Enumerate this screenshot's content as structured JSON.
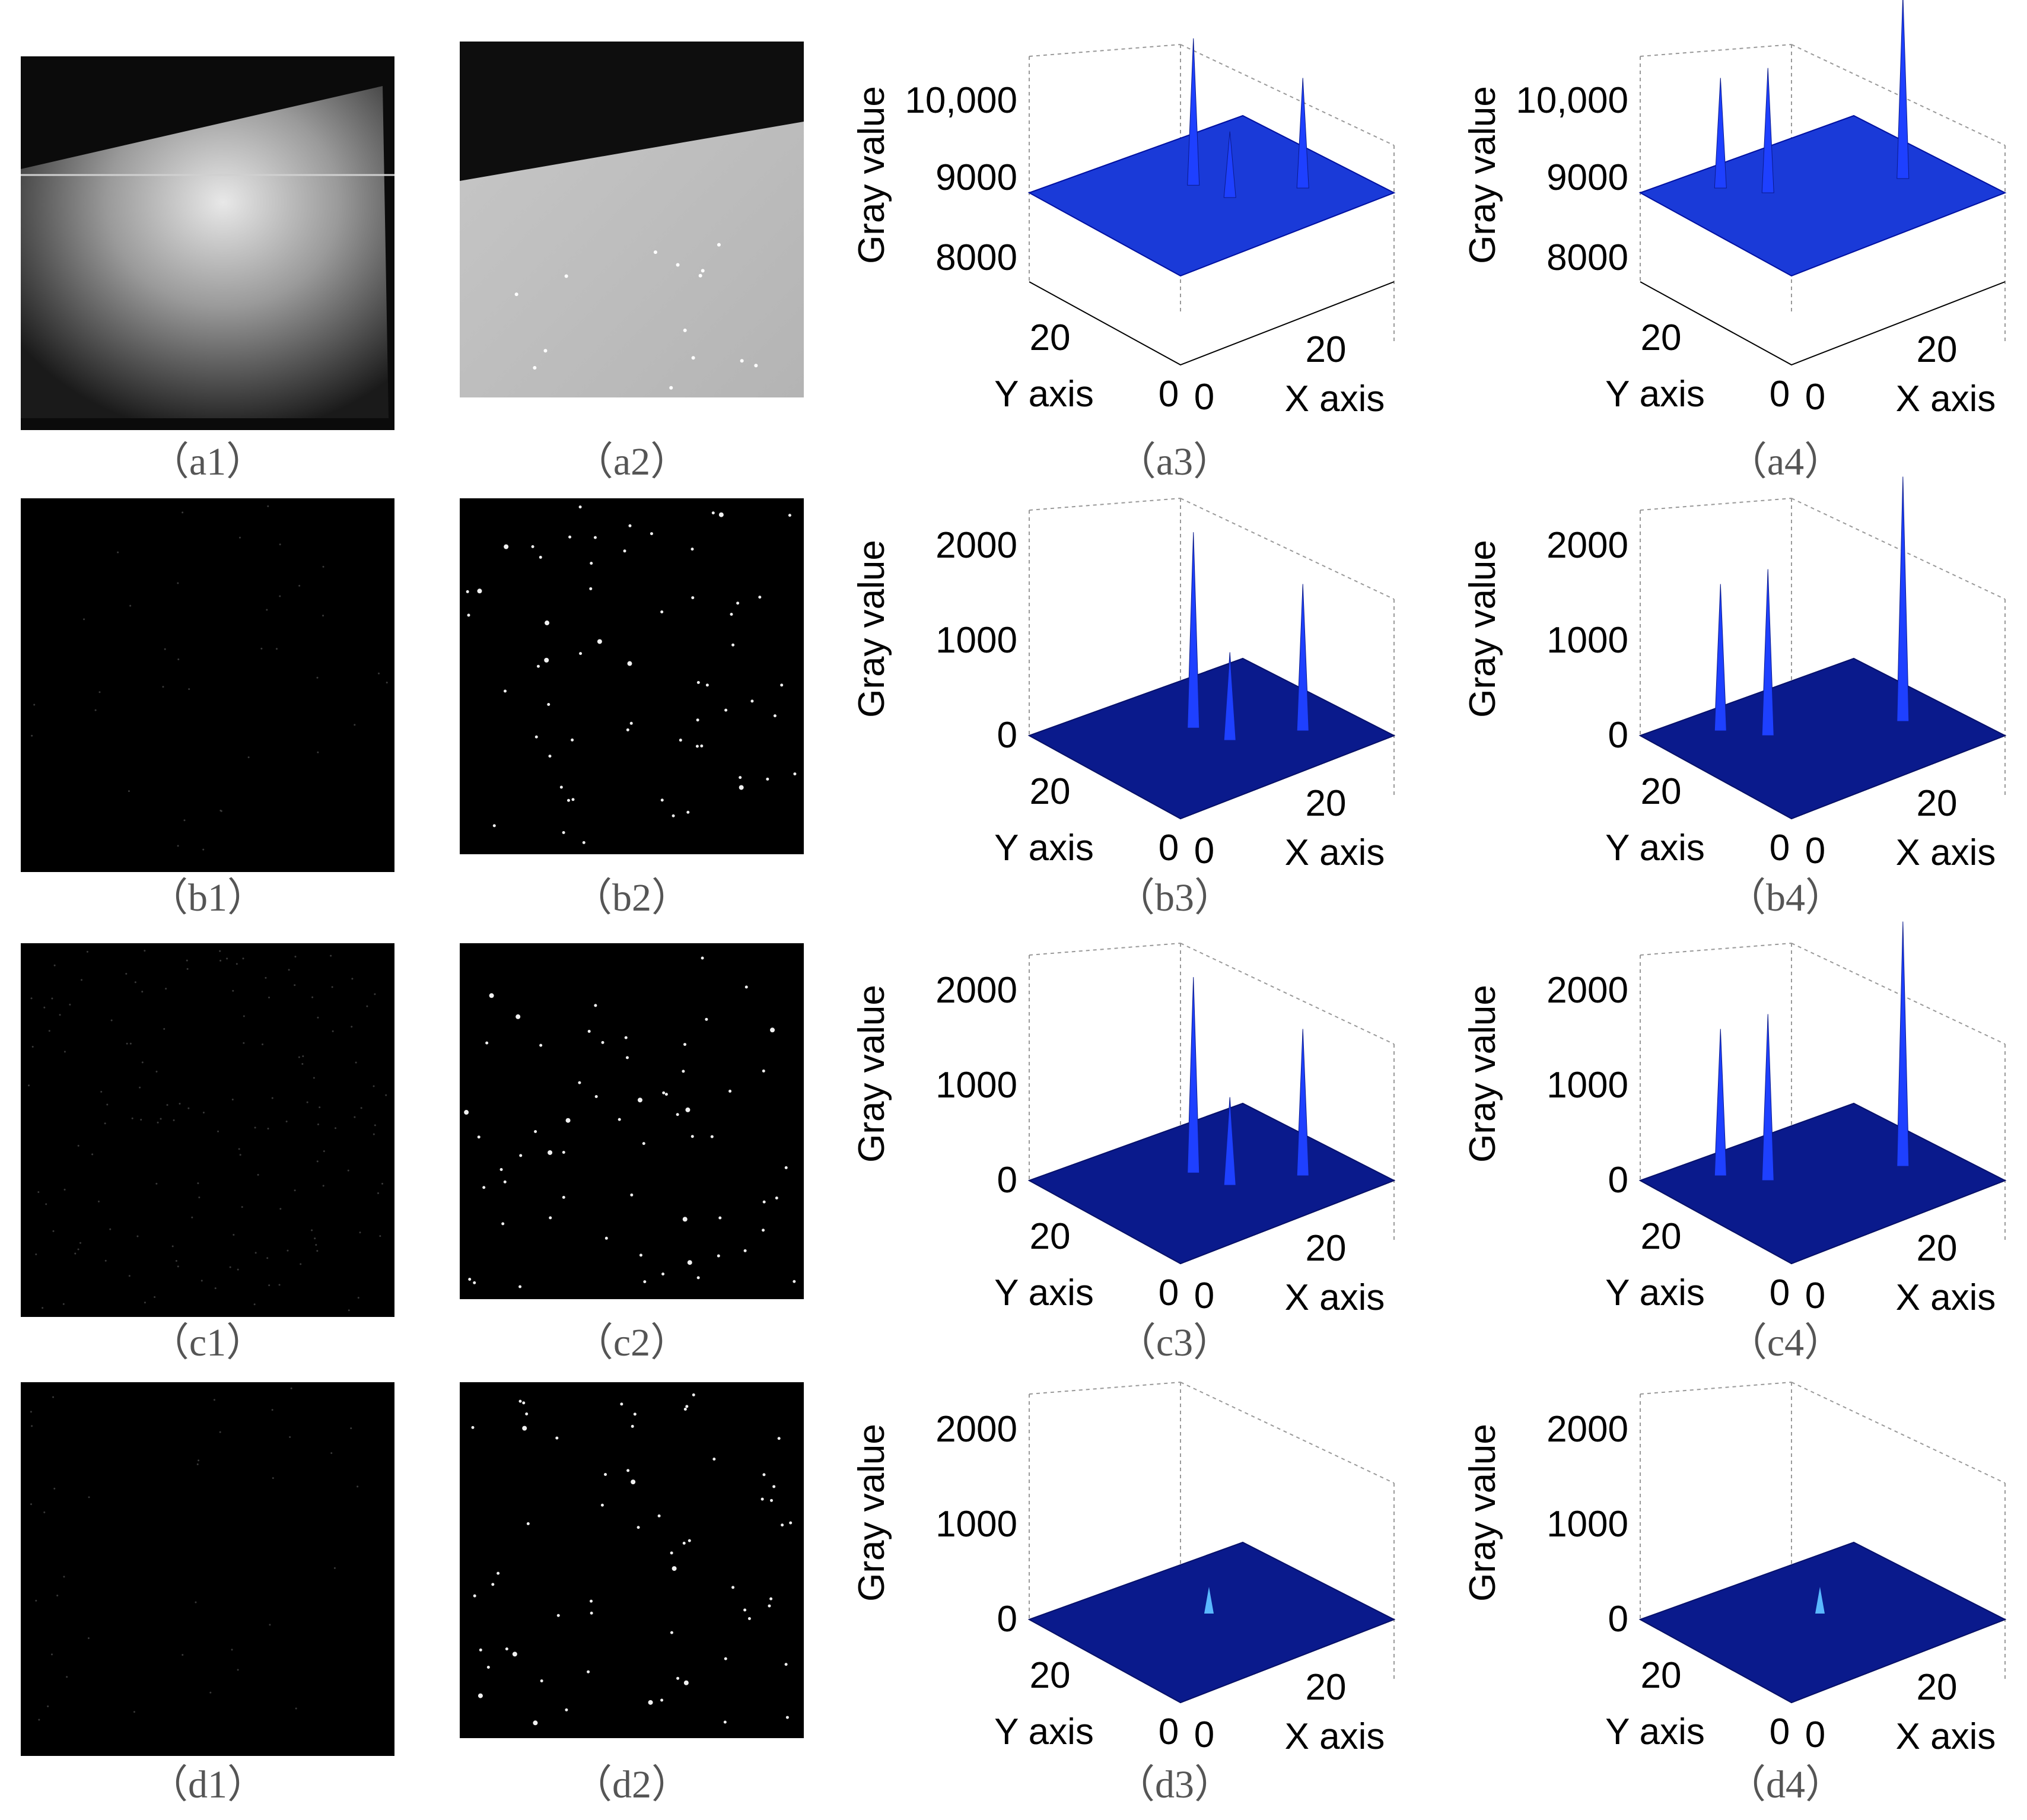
{
  "panels": [
    {
      "label": "（a1）",
      "kind": "image",
      "variant": "raw-light-wedge"
    },
    {
      "label": "（a2）",
      "kind": "image",
      "variant": "raw-light-crop"
    },
    {
      "label": "（a3）",
      "kind": "surface",
      "z_ticks": [
        "10,000",
        "9000",
        "8000"
      ],
      "x_tick": "20",
      "y_tick": "20",
      "origin_ticks": [
        "0",
        "0"
      ],
      "x_label": "X axis",
      "y_label": "Y axis",
      "z_label": "Gray value"
    },
    {
      "label": "（a4）",
      "kind": "surface",
      "z_ticks": [
        "10,000",
        "9000",
        "8000"
      ],
      "x_tick": "20",
      "y_tick": "20",
      "origin_ticks": [
        "0",
        "0"
      ],
      "x_label": "X axis",
      "y_label": "Y axis",
      "z_label": "Gray value"
    },
    {
      "label": "（b1）",
      "kind": "image",
      "variant": "dark-sparse"
    },
    {
      "label": "（b2）",
      "kind": "image",
      "variant": "dark-stars"
    },
    {
      "label": "（b3）",
      "kind": "surface",
      "z_ticks": [
        "2000",
        "1000",
        "0"
      ],
      "x_tick": "20",
      "y_tick": "20",
      "origin_ticks": [
        "0",
        "0"
      ],
      "x_label": "X axis",
      "y_label": "Y axis",
      "z_label": "Gray value"
    },
    {
      "label": "（b4）",
      "kind": "surface",
      "z_ticks": [
        "2000",
        "1000",
        "0"
      ],
      "x_tick": "20",
      "y_tick": "20",
      "origin_ticks": [
        "0",
        "0"
      ],
      "x_label": "X axis",
      "y_label": "Y axis",
      "z_label": "Gray value"
    },
    {
      "label": "（c1）",
      "kind": "image",
      "variant": "dark-noise"
    },
    {
      "label": "（c2）",
      "kind": "image",
      "variant": "dark-stars"
    },
    {
      "label": "（c3）",
      "kind": "surface",
      "z_ticks": [
        "2000",
        "1000",
        "0"
      ],
      "x_tick": "20",
      "y_tick": "20",
      "origin_ticks": [
        "0",
        "0"
      ],
      "x_label": "X axis",
      "y_label": "Y axis",
      "z_label": "Gray value"
    },
    {
      "label": "（c4）",
      "kind": "surface",
      "z_ticks": [
        "2000",
        "1000",
        "0"
      ],
      "x_tick": "20",
      "y_tick": "20",
      "origin_ticks": [
        "0",
        "0"
      ],
      "x_label": "X axis",
      "y_label": "Y axis",
      "z_label": "Gray value"
    },
    {
      "label": "（d1）",
      "kind": "image",
      "variant": "dark-sparse"
    },
    {
      "label": "（d2）",
      "kind": "image",
      "variant": "dark-stars"
    },
    {
      "label": "（d3）",
      "kind": "surface",
      "z_ticks": [
        "2000",
        "1000",
        "0"
      ],
      "x_tick": "20",
      "y_tick": "20",
      "origin_ticks": [
        "0",
        "0"
      ],
      "x_label": "X axis",
      "y_label": "Y axis",
      "z_label": "Gray value"
    },
    {
      "label": "（d4）",
      "kind": "surface",
      "z_ticks": [
        "2000",
        "1000",
        "0"
      ],
      "x_tick": "20",
      "y_tick": "20",
      "origin_ticks": [
        "0",
        "0"
      ],
      "x_label": "X axis",
      "y_label": "Y axis",
      "z_label": "Gray value"
    }
  ],
  "colors": {
    "surface": "#0a1a8c",
    "surface_high": "#2a5cff",
    "peak": "#1e40ff",
    "frame": "#000000",
    "caption": "#555555"
  }
}
